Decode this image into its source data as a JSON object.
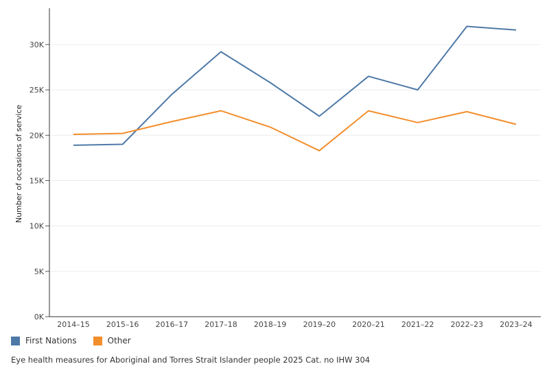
{
  "chart_data": {
    "type": "line",
    "categories": [
      "2014–15",
      "2015–16",
      "2016–17",
      "2017–18",
      "2018–19",
      "2019–20",
      "2020–21",
      "2021–22",
      "2022–23",
      "2023–24"
    ],
    "series": [
      {
        "name": "First Nations",
        "color": "#4e79a7",
        "values": [
          18900,
          19000,
          24500,
          29200,
          25800,
          22100,
          26500,
          25000,
          32000,
          31600
        ]
      },
      {
        "name": "Other",
        "color": "#f28e2b",
        "values": [
          20100,
          20200,
          21500,
          22700,
          20900,
          18300,
          22700,
          21400,
          22600,
          21200
        ]
      }
    ],
    "ylabel": "Number of occasions of service",
    "xlabel": "",
    "ylim": [
      0,
      34000
    ],
    "yticks": [
      0,
      5000,
      10000,
      15000,
      20000,
      25000,
      30000
    ],
    "ytick_labels": [
      "0K",
      "5K",
      "10K",
      "15K",
      "20K",
      "25K",
      "30K"
    ],
    "grid": true,
    "legend_position": "bottom-left"
  },
  "caption": "Eye health measures for Aboriginal and Torres Strait Islander people 2025 Cat. no IHW 304"
}
